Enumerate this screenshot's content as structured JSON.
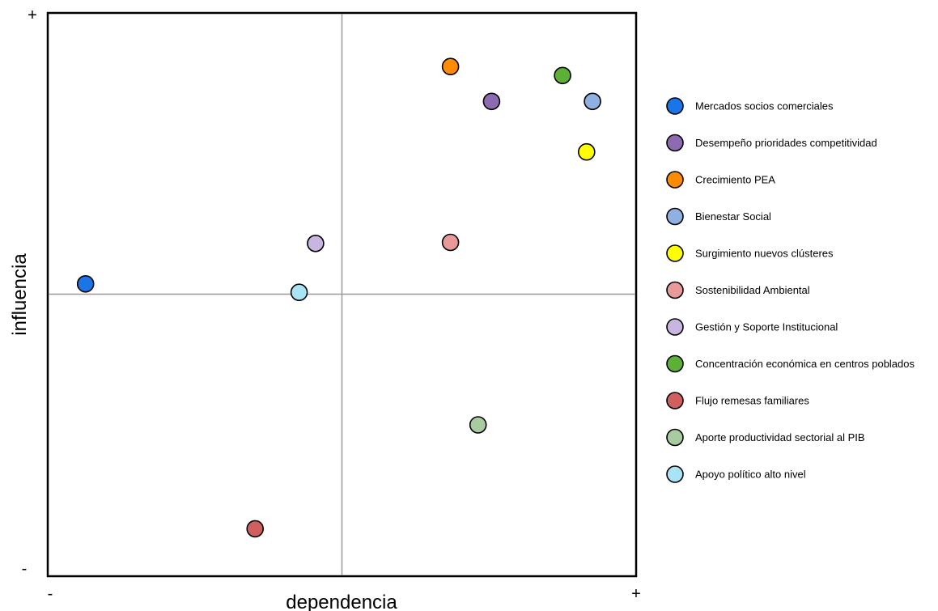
{
  "chart_data": {
    "type": "scatter",
    "xlabel": "dependencia",
    "ylabel": "influencia",
    "xlim": [
      0,
      100
    ],
    "ylim": [
      0,
      100
    ],
    "x_min_label": "-",
    "x_max_label": "+",
    "y_min_label": "-",
    "y_max_label": "+",
    "grid": false,
    "legend_position": "right",
    "series": [
      {
        "name": "Mercados socios comerciales",
        "x": 6.3,
        "y": 51.9,
        "color": "#1a75e8"
      },
      {
        "name": "Desempeño prioridades competitividad",
        "x": 75.5,
        "y": 84.4,
        "color": "#8c6bb1"
      },
      {
        "name": "Crecimiento PEA",
        "x": 68.5,
        "y": 90.6,
        "color": "#ff8c00"
      },
      {
        "name": "Bienestar Social",
        "x": 92.7,
        "y": 84.4,
        "color": "#8fb0e0"
      },
      {
        "name": "Surgimiento nuevos clústeres",
        "x": 91.7,
        "y": 75.4,
        "color": "#ffff00"
      },
      {
        "name": "Sostenibilidad Ambiental",
        "x": 68.5,
        "y": 59.3,
        "color": "#e89a9a"
      },
      {
        "name": "Gestión y Soporte Institucional",
        "x": 45.5,
        "y": 59.1,
        "color": "#c9b6e0"
      },
      {
        "name": "Concentración económica en centros poblados",
        "x": 87.6,
        "y": 89.0,
        "color": "#5bb035"
      },
      {
        "name": "Flujo remesas familiares",
        "x": 35.2,
        "y": 8.3,
        "color": "#d06060"
      },
      {
        "name": "Aporte productividad sectorial al PIB",
        "x": 73.2,
        "y": 26.8,
        "color": "#a8cca0"
      },
      {
        "name": "Apoyo político alto nivel",
        "x": 42.7,
        "y": 50.4,
        "color": "#a8e4f5"
      }
    ]
  }
}
